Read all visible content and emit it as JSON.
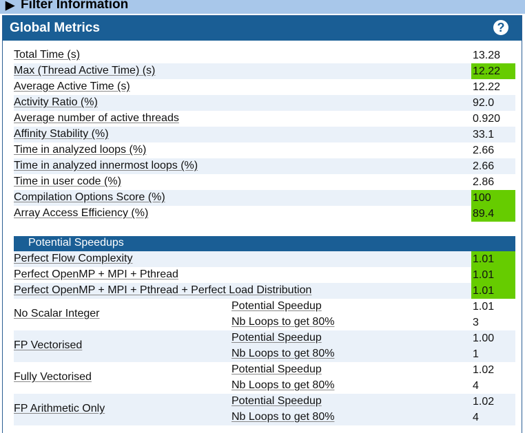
{
  "filter_bar": {
    "arrow": "▶",
    "label": "Filter Information"
  },
  "panel": {
    "title": "Global Metrics",
    "help": "?"
  },
  "metrics": [
    {
      "label": "Total Time (s)",
      "value": "13.28",
      "highlight": false
    },
    {
      "label": "Max (Thread Active Time) (s)",
      "value": "12.22",
      "highlight": true
    },
    {
      "label": "Average Active Time (s)",
      "value": "12.22",
      "highlight": false
    },
    {
      "label": "Activity Ratio (%)",
      "value": "92.0",
      "highlight": false
    },
    {
      "label": "Average number of active threads",
      "value": "0.920",
      "highlight": false
    },
    {
      "label": "Affinity Stability (%)",
      "value": "33.1",
      "highlight": false
    },
    {
      "label": "Time in analyzed loops (%)",
      "value": "2.66",
      "highlight": false
    },
    {
      "label": "Time in analyzed innermost loops (%)",
      "value": "2.66",
      "highlight": false
    },
    {
      "label": "Time in user code (%)",
      "value": "2.86",
      "highlight": false
    },
    {
      "label": "Compilation Options Score (%)",
      "value": "100",
      "highlight": true
    },
    {
      "label": "Array Access Efficiency (%)",
      "value": "89.4",
      "highlight": true
    }
  ],
  "speedups": {
    "title": "Potential Speedups",
    "simple": [
      {
        "label": "Perfect Flow Complexity",
        "value": "1.01"
      },
      {
        "label": "Perfect OpenMP + MPI + Pthread",
        "value": "1.01"
      },
      {
        "label": "Perfect OpenMP + MPI + Pthread + Perfect Load Distribution",
        "value": "1.01"
      }
    ],
    "groups": [
      {
        "label": "No Scalar Integer",
        "speedup_label": "Potential Speedup",
        "speedup": "1.01",
        "loops_label": "Nb Loops to get 80%",
        "loops": "3"
      },
      {
        "label": "FP Vectorised",
        "speedup_label": "Potential Speedup",
        "speedup": "1.00",
        "loops_label": "Nb Loops to get 80%",
        "loops": "1"
      },
      {
        "label": "Fully Vectorised",
        "speedup_label": "Potential Speedup",
        "speedup": "1.02",
        "loops_label": "Nb Loops to get 80%",
        "loops": "4"
      },
      {
        "label": "FP Arithmetic Only",
        "speedup_label": "Potential Speedup",
        "speedup": "1.02",
        "loops_label": "Nb Loops to get 80%",
        "loops": "4"
      }
    ]
  },
  "colors": {
    "header": "#1a5e95",
    "highlight": "#66cc00",
    "row_alt": "#eaf1f9",
    "filter_bar": "#a8c7ea"
  }
}
